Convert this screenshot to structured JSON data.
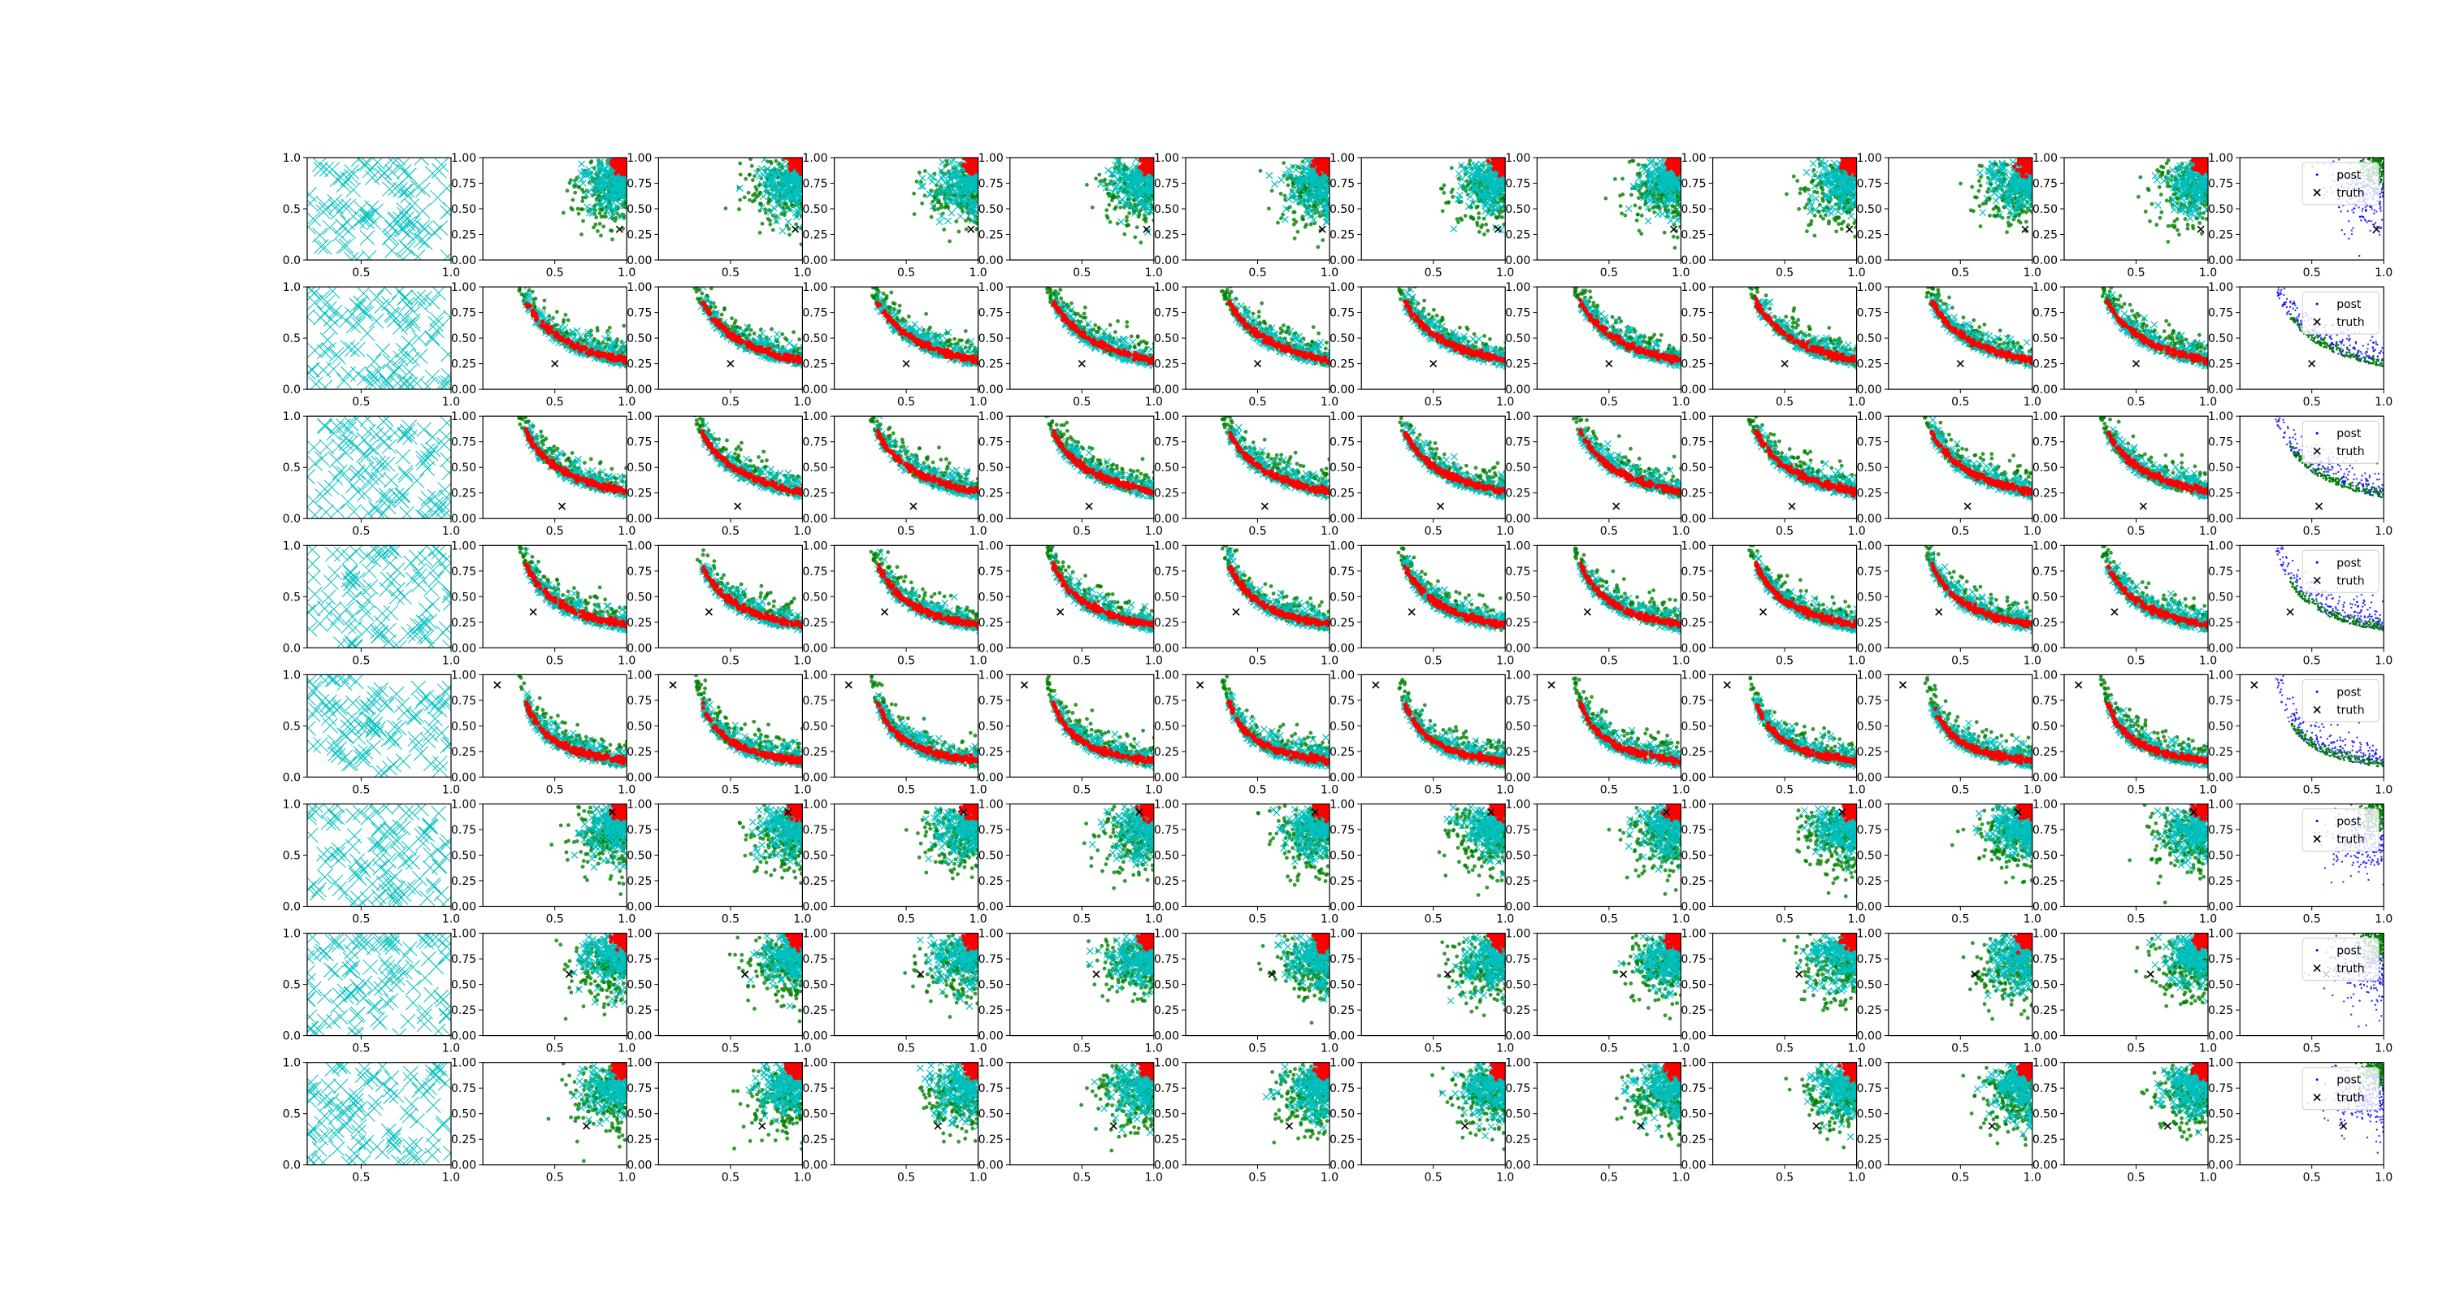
{
  "figure": {
    "type": "scatter-grid",
    "rows": 8,
    "cols": 12,
    "colors": {
      "samples": "#00bfbf",
      "weighted": "#008000",
      "accepted": "#ff0000",
      "posterior": "#0000ff",
      "truth": "#000000"
    },
    "legend": {
      "post_label": "post",
      "truth_label": "truth",
      "placement": "top-right"
    },
    "x_ticks_first_col": [
      "0.5",
      "1.0"
    ],
    "x_ticks_other_cols": [
      "0.5",
      "1.0"
    ],
    "y_ticks_first_col": [
      "0.0",
      "0.5",
      "1.0"
    ],
    "y_ticks_other_cols": [
      "0.00",
      "0.25",
      "0.50",
      "0.75",
      "1.00"
    ]
  },
  "chart_data": {
    "type": "scatter",
    "xlim_first_col": [
      0.2,
      1.0
    ],
    "xlim_other_cols": [
      0.0,
      1.0
    ],
    "ylim": [
      0.0,
      1.0
    ],
    "grid": false,
    "legend_in_last_col": true,
    "rows": [
      {
        "truth": [
          0.95,
          0.3
        ],
        "shape": "corner",
        "sharpness": 0.35
      },
      {
        "truth": [
          0.5,
          0.25
        ],
        "shape": "curve",
        "sharpness": 0.6
      },
      {
        "truth": [
          0.55,
          0.12
        ],
        "shape": "curve",
        "sharpness": 0.65
      },
      {
        "truth": [
          0.35,
          0.35
        ],
        "shape": "curve",
        "sharpness": 0.75
      },
      {
        "truth": [
          0.1,
          0.9
        ],
        "shape": "curve",
        "sharpness": 0.9
      },
      {
        "truth": [
          0.9,
          0.92
        ],
        "shape": "corner",
        "sharpness": 0.4
      },
      {
        "truth": [
          0.6,
          0.6
        ],
        "shape": "corner",
        "sharpness": 0.4
      },
      {
        "truth": [
          0.72,
          0.38
        ],
        "shape": "corner",
        "sharpness": 0.4
      }
    ]
  }
}
